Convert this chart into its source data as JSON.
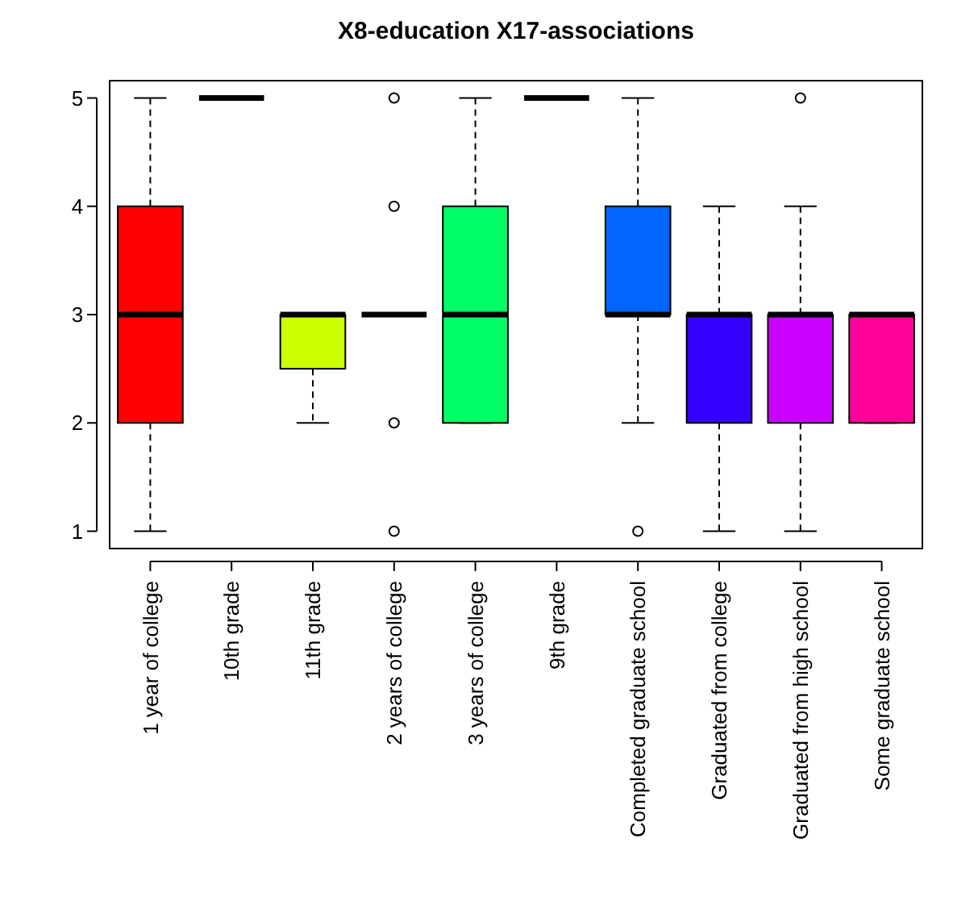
{
  "chart_data": {
    "type": "box",
    "title": "X8-education X17-associations",
    "categories": [
      "1 year of college",
      "10th grade",
      "11th grade",
      "2 years of college",
      "3 years of college",
      "9th grade",
      "Completed graduate school",
      "Graduated from college",
      "Graduated from high school",
      "Some graduate school"
    ],
    "boxes": [
      {
        "low": 1,
        "q1": 2,
        "median": 3,
        "q3": 4,
        "high": 5
      },
      {
        "low": 5,
        "q1": 5,
        "median": 5,
        "q3": 5,
        "high": 5
      },
      {
        "low": 2,
        "q1": 2.5,
        "median": 3,
        "q3": 3,
        "high": 3
      },
      {
        "low": 3,
        "q1": 3,
        "median": 3,
        "q3": 3,
        "high": 3,
        "outliers": [
          5,
          4,
          2,
          1
        ]
      },
      {
        "low": 2,
        "q1": 2,
        "median": 3,
        "q3": 4,
        "high": 5
      },
      {
        "low": 5,
        "q1": 5,
        "median": 5,
        "q3": 5,
        "high": 5
      },
      {
        "low": 2,
        "q1": 3,
        "median": 3,
        "q3": 4,
        "high": 5,
        "outliers": [
          1
        ]
      },
      {
        "low": 1,
        "q1": 2,
        "median": 3,
        "q3": 3,
        "high": 4
      },
      {
        "low": 1,
        "q1": 2,
        "median": 3,
        "q3": 3,
        "high": 4,
        "outliers": [
          5
        ]
      },
      {
        "low": 2,
        "q1": 2,
        "median": 3,
        "q3": 3,
        "high": 3
      }
    ],
    "colors": [
      "#ff0000",
      null,
      "#ccff00",
      null,
      "#00ff66",
      null,
      "#0066ff",
      "#3300ff",
      "#cc00ff",
      "#ff0099"
    ],
    "ylim": [
      0.84,
      5.16
    ],
    "yticks": [
      1,
      2,
      3,
      4,
      5
    ],
    "grid": false
  }
}
